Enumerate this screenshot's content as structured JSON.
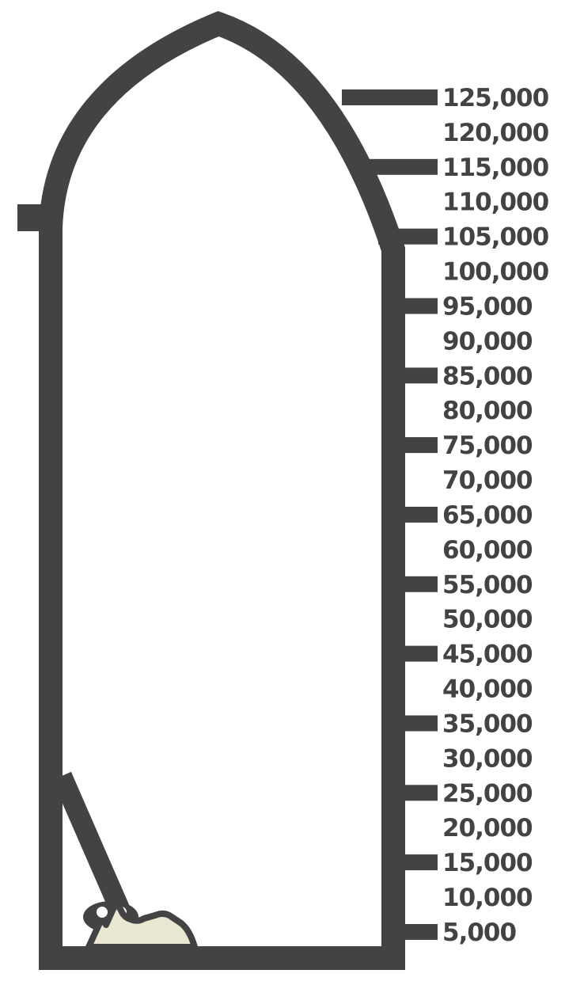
{
  "colors": {
    "outline": "#434343",
    "sediment_fill": "#e9e7d2",
    "sediment_shadow": "#cfcfcf",
    "background": "#ffffff"
  },
  "gauge": {
    "labels": [
      "125,000",
      "120,000",
      "115,000",
      "110,000",
      "105,000",
      "100,000",
      "95,000",
      "90,000",
      "85,000",
      "80,000",
      "75,000",
      "70,000",
      "65,000",
      "60,000",
      "55,000",
      "50,000",
      "45,000",
      "40,000",
      "35,000",
      "30,000",
      "25,000",
      "20,000",
      "15,000",
      "10,000",
      "5,000"
    ],
    "tick_pattern": "tick on every other label starting with the top label"
  }
}
